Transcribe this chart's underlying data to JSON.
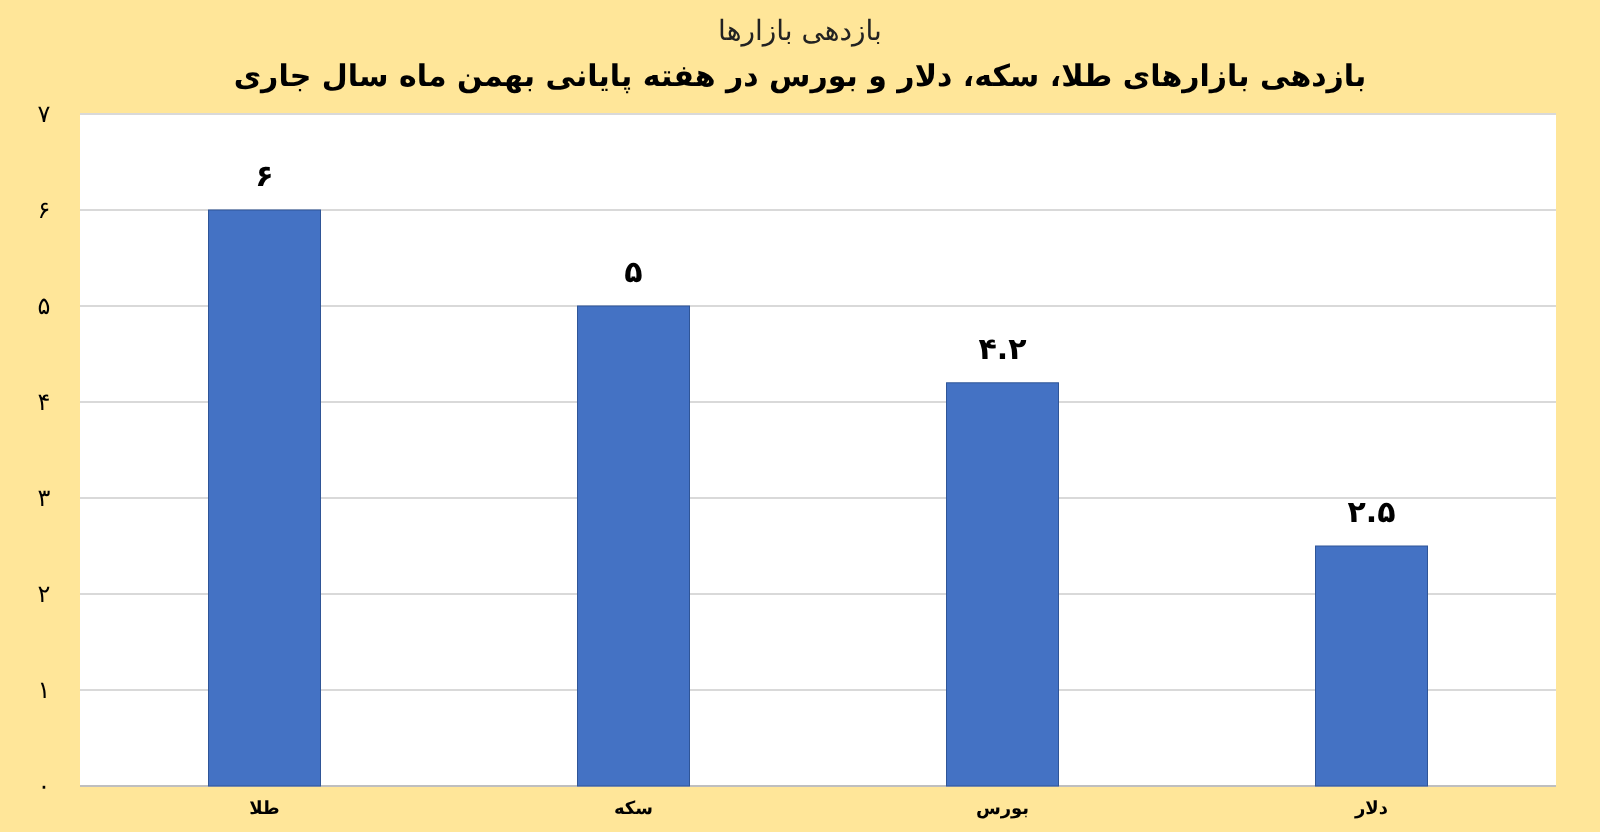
{
  "chart_data": {
    "type": "bar",
    "title": "بازدهی بازارها",
    "subtitle": "بازدهی بازارهای طلا، سکه، دلار و بورس  در هفته پایانی بهمن ماه سال جاری",
    "categories": [
      "طلا",
      "سکه",
      "بورس",
      "دلار"
    ],
    "values": [
      6,
      5,
      4.2,
      2.5
    ],
    "value_labels": [
      "۶",
      "۵",
      "۴.۲",
      "۲.۵"
    ],
    "color": "#4472c4",
    "ylim": [
      0,
      7
    ],
    "yticks": [
      {
        "value": 0,
        "label": "۰"
      },
      {
        "value": 1,
        "label": "۱"
      },
      {
        "value": 2,
        "label": "۲"
      },
      {
        "value": 3,
        "label": "۳"
      },
      {
        "value": 4,
        "label": "۴"
      },
      {
        "value": 5,
        "label": "۵"
      },
      {
        "value": 6,
        "label": "۶"
      },
      {
        "value": 7,
        "label": "۷"
      }
    ],
    "grid": "y"
  }
}
